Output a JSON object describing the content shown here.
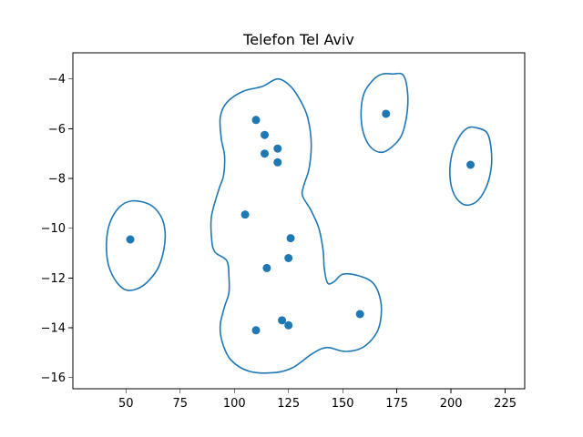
{
  "chart_data": {
    "type": "scatter",
    "title": "Telefon Tel Aviv",
    "xlabel": "",
    "ylabel": "",
    "xlim": [
      25.5,
      234
    ],
    "ylim": [
      -16.45,
      -2.95
    ],
    "xticks": [
      50,
      75,
      100,
      125,
      150,
      175,
      200,
      225
    ],
    "xtick_labels": [
      "50",
      "75",
      "100",
      "125",
      "150",
      "175",
      "200",
      "225"
    ],
    "yticks": [
      -16,
      -14,
      -12,
      -10,
      -8,
      -6,
      -4
    ],
    "ytick_labels": [
      "−16",
      "−14",
      "−12",
      "−10",
      "−8",
      "−6",
      "−4"
    ],
    "grid": false,
    "color": "#1f77b4",
    "points": [
      {
        "x": 52,
        "y": -10.45
      },
      {
        "x": 105,
        "y": -9.45
      },
      {
        "x": 110,
        "y": -5.65
      },
      {
        "x": 114,
        "y": -6.25
      },
      {
        "x": 114,
        "y": -7.0
      },
      {
        "x": 120,
        "y": -6.8
      },
      {
        "x": 120,
        "y": -7.35
      },
      {
        "x": 126,
        "y": -10.4
      },
      {
        "x": 125,
        "y": -11.2
      },
      {
        "x": 115,
        "y": -11.6
      },
      {
        "x": 158,
        "y": -13.45
      },
      {
        "x": 122,
        "y": -13.7
      },
      {
        "x": 125,
        "y": -13.9
      },
      {
        "x": 110,
        "y": -14.1
      },
      {
        "x": 170,
        "y": -5.4
      },
      {
        "x": 209,
        "y": -7.45
      }
    ],
    "contours": [
      {
        "closed": true,
        "points": [
          [
            53,
            -8.9
          ],
          [
            61,
            -9.05
          ],
          [
            66,
            -9.5
          ],
          [
            68,
            -10.1
          ],
          [
            67.5,
            -10.85
          ],
          [
            64.5,
            -11.65
          ],
          [
            58,
            -12.3
          ],
          [
            51,
            -12.5
          ],
          [
            46,
            -12.2
          ],
          [
            42,
            -11.5
          ],
          [
            41,
            -10.6
          ],
          [
            42.5,
            -9.8
          ],
          [
            47,
            -9.15
          ]
        ]
      },
      {
        "closed": true,
        "points": [
          [
            113,
            -4.3
          ],
          [
            120,
            -4.0
          ],
          [
            126,
            -4.3
          ],
          [
            131,
            -4.95
          ],
          [
            134,
            -5.6
          ],
          [
            135.5,
            -6.6
          ],
          [
            134.5,
            -7.6
          ],
          [
            132,
            -8.3
          ],
          [
            131.5,
            -8.7
          ],
          [
            135.5,
            -9.3
          ],
          [
            139,
            -10.0
          ],
          [
            141,
            -10.9
          ],
          [
            141.5,
            -11.6
          ],
          [
            143,
            -12.2
          ],
          [
            146,
            -12.15
          ],
          [
            150,
            -11.85
          ],
          [
            157,
            -11.9
          ],
          [
            164,
            -12.2
          ],
          [
            167.5,
            -12.9
          ],
          [
            167.5,
            -13.7
          ],
          [
            165,
            -14.3
          ],
          [
            159,
            -14.8
          ],
          [
            151,
            -14.95
          ],
          [
            144,
            -14.8
          ],
          [
            140,
            -14.85
          ],
          [
            135,
            -15.1
          ],
          [
            127,
            -15.6
          ],
          [
            119,
            -15.8
          ],
          [
            107,
            -15.75
          ],
          [
            98.5,
            -15.3
          ],
          [
            94.5,
            -14.6
          ],
          [
            93.5,
            -13.9
          ],
          [
            95.5,
            -13.15
          ],
          [
            97.5,
            -12.6
          ],
          [
            97.5,
            -11.9
          ],
          [
            96.5,
            -11.3
          ],
          [
            91,
            -10.95
          ],
          [
            89.5,
            -10.4
          ],
          [
            89.5,
            -9.5
          ],
          [
            93,
            -8.4
          ],
          [
            95,
            -7.9
          ],
          [
            95.5,
            -7.1
          ],
          [
            94,
            -6.4
          ],
          [
            93.5,
            -5.55
          ],
          [
            96.5,
            -4.95
          ],
          [
            104,
            -4.5
          ]
        ]
      },
      {
        "closed": true,
        "points": [
          [
            173,
            -3.8
          ],
          [
            178,
            -3.85
          ],
          [
            180,
            -4.6
          ],
          [
            179.5,
            -5.5
          ],
          [
            177,
            -6.3
          ],
          [
            172.5,
            -6.75
          ],
          [
            168,
            -6.95
          ],
          [
            163,
            -6.75
          ],
          [
            159.5,
            -6.15
          ],
          [
            158.5,
            -5.3
          ],
          [
            160,
            -4.55
          ],
          [
            164.5,
            -4.0
          ],
          [
            168.5,
            -3.8
          ]
        ]
      },
      {
        "closed": true,
        "points": [
          [
            211,
            -5.95
          ],
          [
            216.5,
            -6.15
          ],
          [
            218.5,
            -6.8
          ],
          [
            218.5,
            -7.6
          ],
          [
            216,
            -8.4
          ],
          [
            211.5,
            -8.95
          ],
          [
            206,
            -9.05
          ],
          [
            201.5,
            -8.65
          ],
          [
            199.5,
            -7.9
          ],
          [
            200.5,
            -7.0
          ],
          [
            204,
            -6.3
          ],
          [
            207.5,
            -5.98
          ]
        ]
      }
    ]
  }
}
